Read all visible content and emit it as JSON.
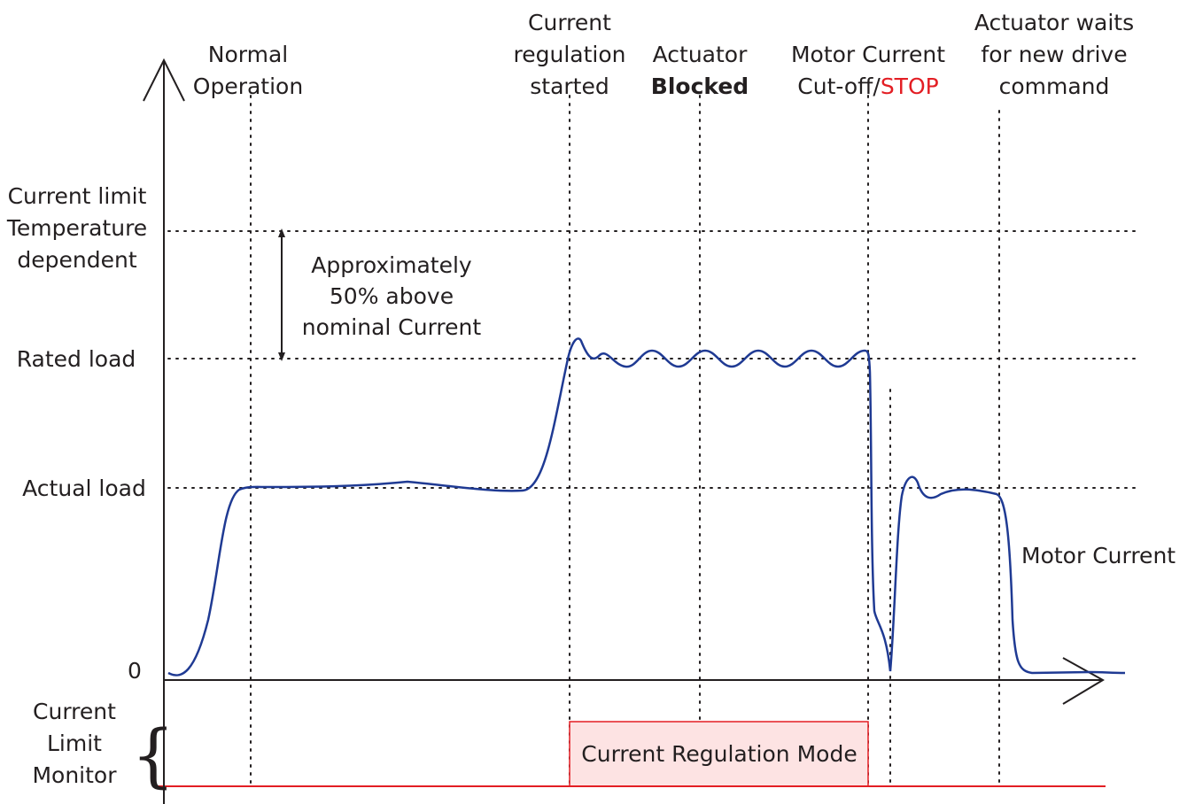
{
  "events": {
    "normal": [
      "Normal",
      "Operation"
    ],
    "regulation": [
      "Current",
      "regulation",
      "started"
    ],
    "blocked": [
      "Actuator",
      "Blocked"
    ],
    "cutoff": [
      "Motor Current",
      "Cut-off/",
      "STOP"
    ],
    "waits": [
      "Actuator waits",
      "for new drive",
      "command"
    ]
  },
  "levels": {
    "current_limit": [
      "Current limit",
      "Temperature",
      "dependent"
    ],
    "rated": "Rated load",
    "actual": "Actual load",
    "zero": "0"
  },
  "annotation": [
    "Approximately",
    "50% above",
    "nominal Current"
  ],
  "curve_label": "Motor Current",
  "monitor": {
    "label": [
      "Current",
      "Limit",
      "Monitor"
    ],
    "brace": "{",
    "mode": "Current Regulation Mode"
  }
}
